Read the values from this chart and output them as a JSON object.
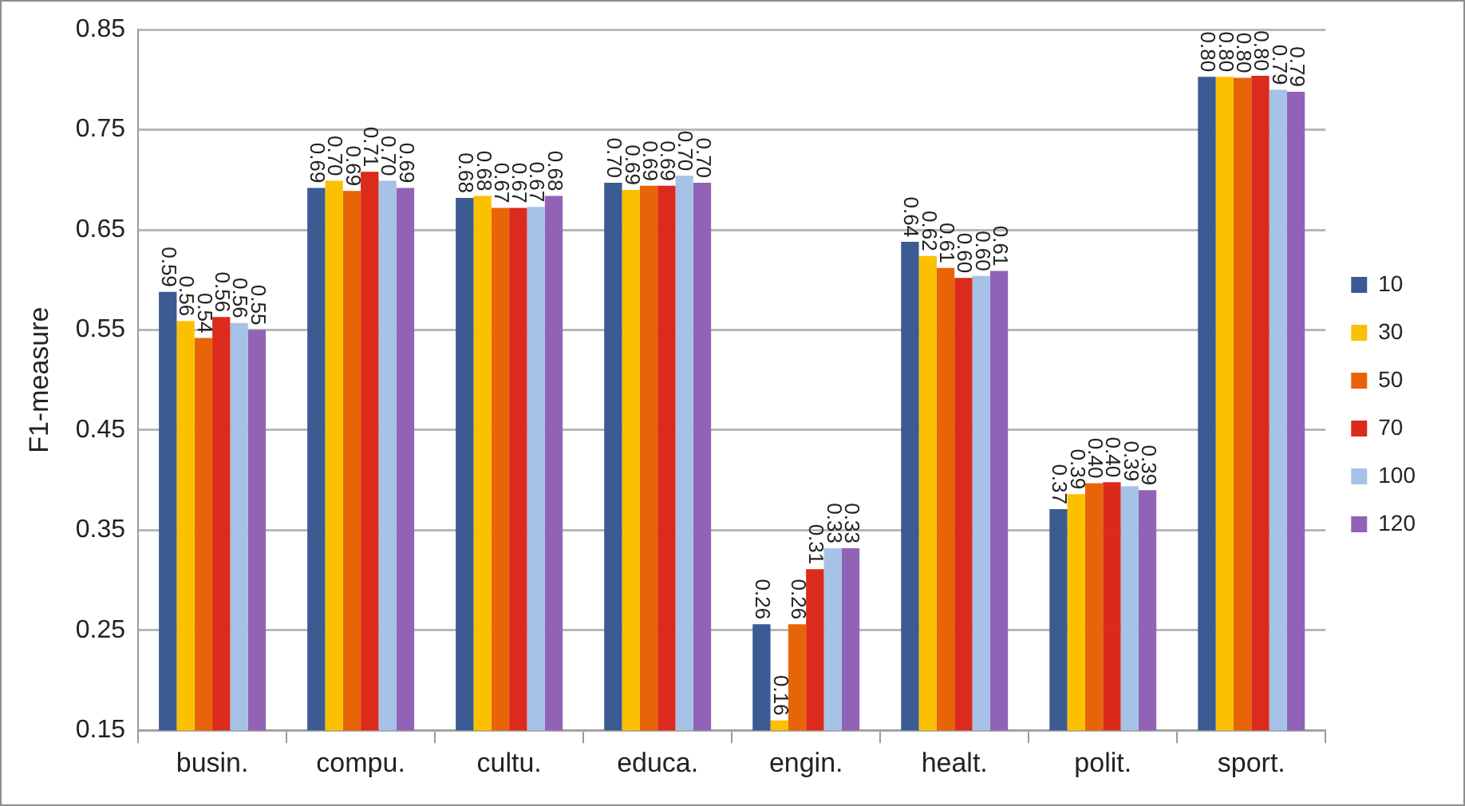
{
  "chart_data": {
    "type": "bar",
    "ylabel": "F1-measure",
    "categories": [
      "busin.",
      "compu.",
      "cultu.",
      "educa.",
      "engin.",
      "healt.",
      "polit.",
      "sport."
    ],
    "series": [
      {
        "name": "10",
        "color": "#3b5b92",
        "values": [
          0.588,
          0.692,
          0.682,
          0.697,
          0.256,
          0.638,
          0.371,
          0.803
        ],
        "value_labels": [
          "0.59",
          "0.69",
          "0.68",
          "0.70",
          "0.26",
          "0.64",
          "0.37",
          "0.80"
        ]
      },
      {
        "name": "30",
        "color": "#fbc000",
        "values": [
          0.559,
          0.699,
          0.684,
          0.69,
          0.16,
          0.624,
          0.386,
          0.803
        ],
        "value_labels": [
          "0.56",
          "0.70",
          "0.68",
          "0.69",
          "0.16",
          "0.62",
          "0.39",
          "0.80"
        ]
      },
      {
        "name": "50",
        "color": "#e86408",
        "values": [
          0.542,
          0.689,
          0.672,
          0.694,
          0.256,
          0.612,
          0.397,
          0.802
        ],
        "value_labels": [
          "0.54",
          "0.69",
          "0.67",
          "0.69",
          "0.26",
          "0.61",
          "0.40",
          "0.80"
        ]
      },
      {
        "name": "70",
        "color": "#dc2a1c",
        "values": [
          0.563,
          0.708,
          0.672,
          0.694,
          0.311,
          0.602,
          0.398,
          0.804
        ],
        "value_labels": [
          "0.56",
          "0.71",
          "0.67",
          "0.69",
          "0.31",
          "0.60",
          "0.40",
          "0.80"
        ]
      },
      {
        "name": "100",
        "color": "#a6c2e6",
        "values": [
          0.557,
          0.699,
          0.673,
          0.704,
          0.332,
          0.604,
          0.394,
          0.79
        ],
        "value_labels": [
          "0.56",
          "0.70",
          "0.67",
          "0.70",
          "0.33",
          "0.60",
          "0.39",
          "0.79"
        ]
      },
      {
        "name": "120",
        "color": "#9163b6",
        "values": [
          0.55,
          0.692,
          0.684,
          0.697,
          0.332,
          0.609,
          0.39,
          0.788
        ],
        "value_labels": [
          "0.55",
          "0.69",
          "0.68",
          "0.70",
          "0.33",
          "0.61",
          "0.39",
          "0.79"
        ]
      }
    ],
    "ylim": [
      0.15,
      0.85
    ],
    "yticks": [
      0.15,
      0.25,
      0.35,
      0.45,
      0.55,
      0.65,
      0.75,
      0.85
    ],
    "grid": "y",
    "legend": "right"
  }
}
